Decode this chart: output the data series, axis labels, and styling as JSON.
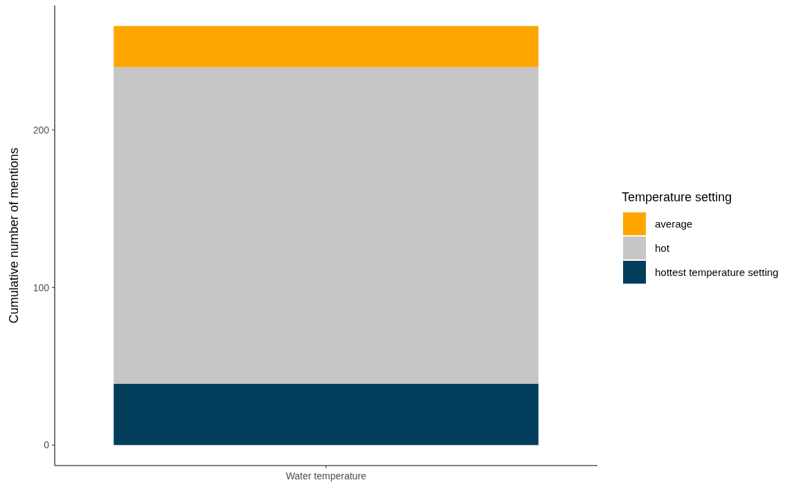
{
  "chart_data": {
    "type": "bar",
    "stacked": true,
    "categories": [
      "Water temperature"
    ],
    "ylabel": "Cumulative number of mentions",
    "legend_title": "Temperature setting",
    "legend": "right",
    "ylim": [
      -13,
      279
    ],
    "yticks": [
      0,
      100,
      200
    ],
    "series": [
      {
        "name": "hottest temperature setting",
        "color": "#023e5b",
        "values": [
          39
        ]
      },
      {
        "name": "hot",
        "color": "#c6c6c6",
        "values": [
          201
        ]
      },
      {
        "name": "average",
        "color": "#ffa500",
        "values": [
          26
        ]
      }
    ]
  }
}
